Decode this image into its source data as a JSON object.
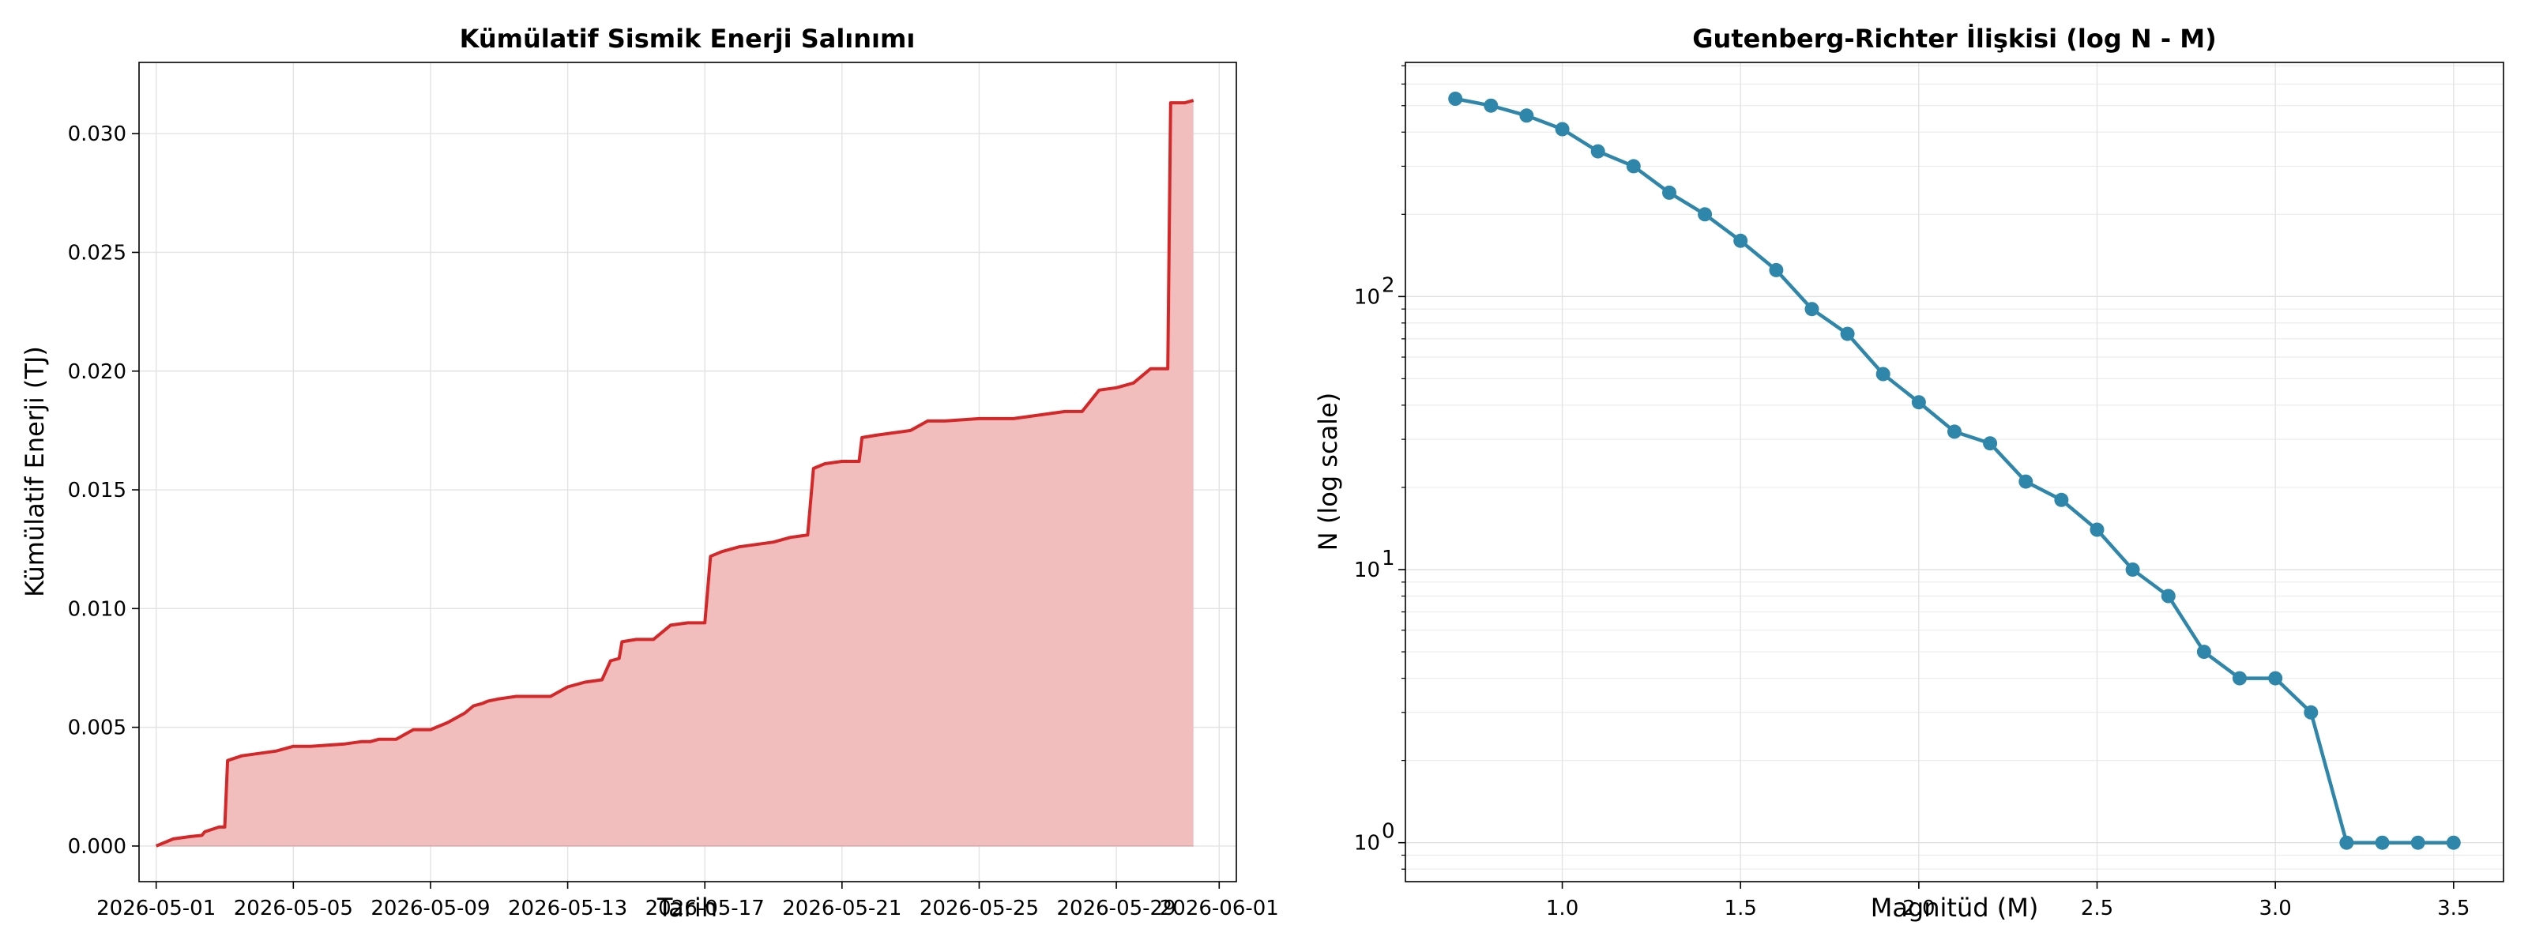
{
  "chart_data": [
    {
      "type": "area",
      "title": "Kümülatif Sismik Enerji Salınımı",
      "xlabel": "Tarih",
      "ylabel": "Kümülatif Enerji (TJ)",
      "xlim": [
        "2026-04-30T12:00",
        "2026-06-01T12:00"
      ],
      "ylim": [
        -0.0015,
        0.033
      ],
      "x_ticks": [
        "2026-05-01",
        "2026-05-05",
        "2026-05-09",
        "2026-05-13",
        "2026-05-17",
        "2026-05-21",
        "2026-05-25",
        "2026-05-29",
        "2026-06-01"
      ],
      "y_ticks": [
        0.0,
        0.005,
        0.01,
        0.015,
        0.02,
        0.025,
        0.03
      ],
      "y_tick_labels": [
        "0.000",
        "0.005",
        "0.010",
        "0.015",
        "0.020",
        "0.025",
        "0.030"
      ],
      "grid": true,
      "line_color": "#d62728",
      "fill_color": "#f2bdbd",
      "series": [
        {
          "x": [
            "2026-05-01T00:00",
            "2026-05-01T12:00",
            "2026-05-02T00:00",
            "2026-05-02T08:00",
            "2026-05-02T10:00",
            "2026-05-02T20:00",
            "2026-05-03T00:00",
            "2026-05-03T02:00",
            "2026-05-03T12:00",
            "2026-05-04T00:00",
            "2026-05-04T12:00",
            "2026-05-04T18:00",
            "2026-05-05T00:00",
            "2026-05-05T06:00",
            "2026-05-05T12:00",
            "2026-05-06T12:00",
            "2026-05-07T00:00",
            "2026-05-07T06:00",
            "2026-05-07T12:00",
            "2026-05-08T00:00",
            "2026-05-08T12:00",
            "2026-05-08T18:00",
            "2026-05-09T00:00",
            "2026-05-09T12:00",
            "2026-05-10T00:00",
            "2026-05-10T06:00",
            "2026-05-10T12:00",
            "2026-05-10T16:00",
            "2026-05-11T00:00",
            "2026-05-11T12:00",
            "2026-05-12T00:00",
            "2026-05-12T12:00",
            "2026-05-13T00:00",
            "2026-05-13T12:00",
            "2026-05-14T00:00",
            "2026-05-14T06:00",
            "2026-05-14T12:00",
            "2026-05-14T14:00",
            "2026-05-15T00:00",
            "2026-05-15T12:00",
            "2026-05-16T00:00",
            "2026-05-16T12:00",
            "2026-05-17T00:00",
            "2026-05-17T04:00",
            "2026-05-17T12:00",
            "2026-05-18T00:00",
            "2026-05-18T12:00",
            "2026-05-19T00:00",
            "2026-05-19T12:00",
            "2026-05-20T00:00",
            "2026-05-20T04:00",
            "2026-05-20T12:00",
            "2026-05-21T00:00",
            "2026-05-21T12:00",
            "2026-05-21T14:00",
            "2026-05-22T00:00",
            "2026-05-22T12:00",
            "2026-05-23T00:00",
            "2026-05-23T12:00",
            "2026-05-24T00:00",
            "2026-05-25T00:00",
            "2026-05-26T00:00",
            "2026-05-26T12:00",
            "2026-05-27T00:00",
            "2026-05-27T12:00",
            "2026-05-28T00:00",
            "2026-05-28T12:00",
            "2026-05-29T00:00",
            "2026-05-29T12:00",
            "2026-05-30T00:00",
            "2026-05-30T12:00",
            "2026-05-30T14:00",
            "2026-05-31T00:00",
            "2026-05-31T06:00"
          ],
          "y": [
            0.0,
            0.0003,
            0.0004,
            0.00045,
            0.0006,
            0.0008,
            0.0008,
            0.0036,
            0.0038,
            0.0039,
            0.004,
            0.0041,
            0.0042,
            0.0042,
            0.0042,
            0.0043,
            0.0044,
            0.0044,
            0.0045,
            0.0045,
            0.0049,
            0.0049,
            0.0049,
            0.0052,
            0.0056,
            0.0059,
            0.006,
            0.0061,
            0.0062,
            0.0063,
            0.0063,
            0.0063,
            0.0067,
            0.0069,
            0.007,
            0.0078,
            0.0079,
            0.0086,
            0.0087,
            0.0087,
            0.0093,
            0.0094,
            0.0094,
            0.0122,
            0.0124,
            0.0126,
            0.0127,
            0.0128,
            0.013,
            0.0131,
            0.0159,
            0.0161,
            0.0162,
            0.0162,
            0.0172,
            0.0173,
            0.0174,
            0.0175,
            0.0179,
            0.0179,
            0.018,
            0.018,
            0.0181,
            0.0182,
            0.0183,
            0.0183,
            0.0192,
            0.0193,
            0.0195,
            0.0201,
            0.0201,
            0.0313,
            0.0313,
            0.0314
          ]
        }
      ]
    },
    {
      "type": "line",
      "title": "Gutenberg-Richter İlişkisi (log N - M)",
      "xlabel": "Magnitüd (M)",
      "ylabel": "N (log scale)",
      "xlim": [
        0.56,
        3.64
      ],
      "ylim": [
        0.72,
        720
      ],
      "y_scale": "log",
      "x_ticks": [
        1.0,
        1.5,
        2.0,
        2.5,
        3.0,
        3.5
      ],
      "x_tick_labels": [
        "1.0",
        "1.5",
        "2.0",
        "2.5",
        "3.0",
        "3.5"
      ],
      "y_ticks": [
        1,
        10,
        100
      ],
      "y_tick_labels": [
        "10",
        "10",
        "10"
      ],
      "y_tick_exponents": [
        "0",
        "1",
        "2"
      ],
      "grid": true,
      "line_color": "#2e86ab",
      "series": [
        {
          "x": [
            0.7,
            0.8,
            0.9,
            1.0,
            1.1,
            1.2,
            1.3,
            1.4,
            1.5,
            1.6,
            1.7,
            1.8,
            1.9,
            2.0,
            2.1,
            2.2,
            2.3,
            2.4,
            2.5,
            2.6,
            2.7,
            2.8,
            2.9,
            3.0,
            3.1,
            3.2,
            3.3,
            3.4,
            3.5
          ],
          "y": [
            530,
            500,
            460,
            410,
            340,
            300,
            240,
            200,
            160,
            125,
            90,
            73,
            52,
            41,
            32,
            29,
            21,
            18,
            14,
            10,
            8,
            5,
            4,
            4,
            3,
            1,
            1,
            1,
            1
          ]
        }
      ]
    }
  ]
}
